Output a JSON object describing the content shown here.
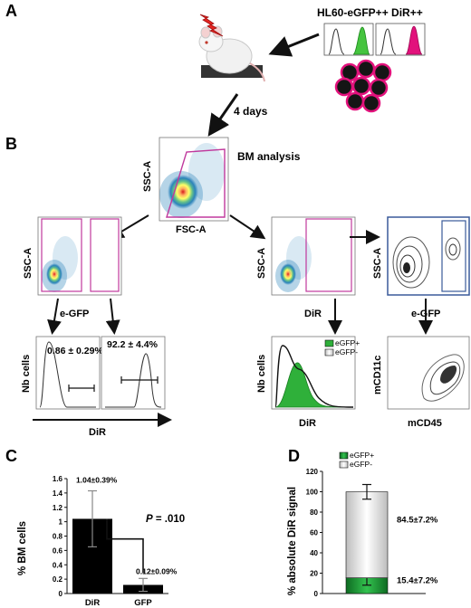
{
  "panels": {
    "A": "A",
    "B": "B",
    "C": "C",
    "D": "D"
  },
  "panel_a": {
    "cell_title": "HL60-eGFP++ DiR++",
    "days_label": "4 days"
  },
  "panel_b": {
    "bm_label": "BM analysis",
    "top_plot": {
      "ylabel": "SSC-A",
      "xlabel": "FSC-A"
    },
    "left_scatter": {
      "ylabel": "SSC-A",
      "xlabel": "e-GFP"
    },
    "mid_scatter": {
      "ylabel": "SSC-A",
      "xlabel": "DiR"
    },
    "right_contour": {
      "ylabel": "SSC-A",
      "xlabel": "e-GFP"
    },
    "hist_left": {
      "ylabel": "Nb cells",
      "value": "0.86 ± 0.29%"
    },
    "hist_right": {
      "value": "92.2 ± 4.4%"
    },
    "hist_axis_label": "DiR",
    "mid_hist": {
      "ylabel": "Nb cells",
      "xlabel": "DiR",
      "legend": [
        "eGFP+",
        "eGFP-"
      ]
    },
    "right_bottom": {
      "ylabel": "mCD11c",
      "xlabel": "mCD45"
    }
  },
  "panel_c": {
    "chart_data": {
      "type": "bar",
      "categories": [
        "DiR",
        "GFP"
      ],
      "values": [
        1.04,
        0.12
      ],
      "errors": [
        0.39,
        0.09
      ],
      "value_labels": [
        "1.04±0.39%",
        "0.12±0.09%"
      ],
      "ylabel": "% BM cells",
      "yticks": [
        "0",
        "0.2",
        "0.4",
        "0.6",
        "0.8",
        "1",
        "1.2",
        "1.4",
        "1.6"
      ],
      "ylim": [
        0,
        1.6
      ],
      "pvalue_prefix": "P",
      "pvalue_suffix": " = .010",
      "bar_color": "#000000"
    }
  },
  "panel_d": {
    "chart_data": {
      "type": "bar",
      "stacked": true,
      "series": [
        {
          "name": "eGFP+",
          "value": 15.4,
          "error": 7.2,
          "label": "15.4±7.2%",
          "color": "#1f9a3a"
        },
        {
          "name": "eGFP-",
          "value": 84.5,
          "error": 7.2,
          "label": "84.5±7.2%",
          "color": "#e8e8e8"
        }
      ],
      "ylabel": "% absolute DiR signal",
      "yticks": [
        "0",
        "20",
        "40",
        "60",
        "80",
        "100",
        "120"
      ],
      "ylim": [
        0,
        120
      ]
    }
  }
}
